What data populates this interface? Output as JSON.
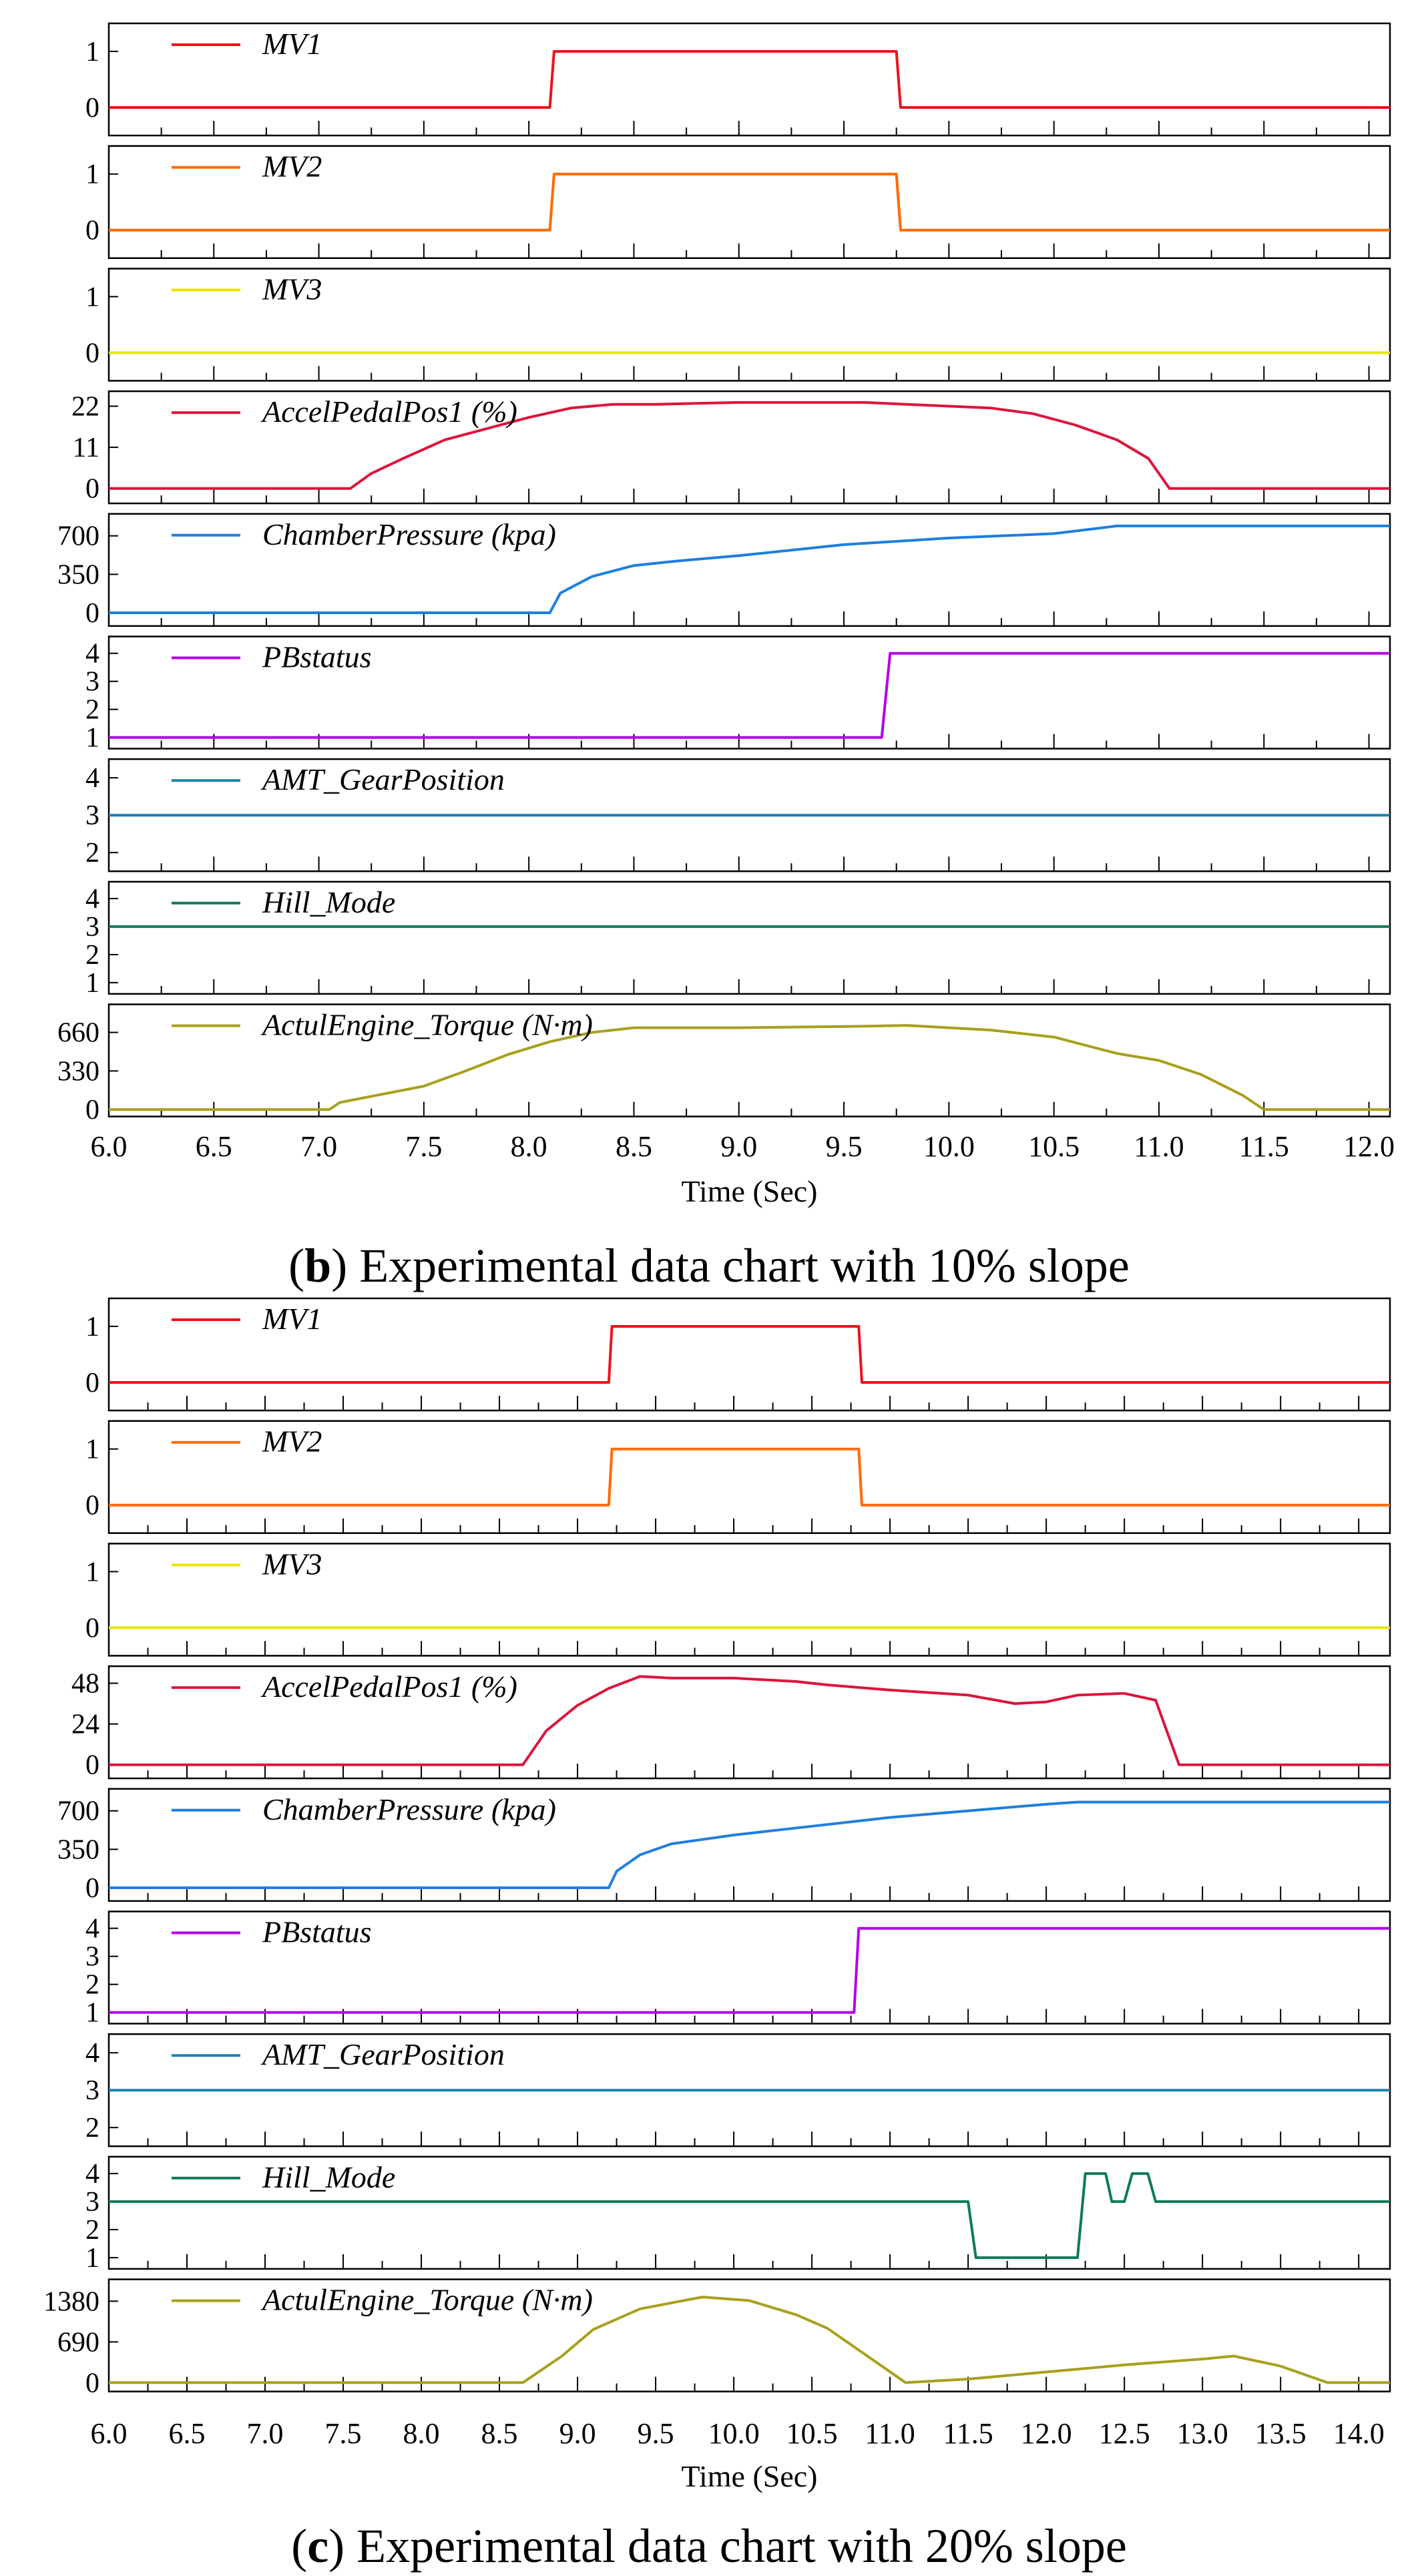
{
  "figure": {
    "colors": {
      "MV1": "#e8141b",
      "MV2": "#ff6a00",
      "MV3": "#e6e600",
      "AccelPedalPos1": "#dc143c",
      "ChamberPressure": "#1e7fe0",
      "PBstatus": "#b400e6",
      "AMT_GearPosition": "#1a82b4",
      "Hill_Mode": "#0f7a5a",
      "ActulEngine_Torque": "#a8a01e"
    }
  },
  "chart_data": [
    {
      "type": "line",
      "id": "b",
      "caption": {
        "letter": "b",
        "text": "Experimental data chart with 10% slope"
      },
      "xlabel": "Time (Sec)",
      "xlim": [
        6.0,
        12.1
      ],
      "xticks": [
        "6.0",
        "6.5",
        "7.0",
        "7.5",
        "8.0",
        "8.5",
        "9.0",
        "9.5",
        "10.0",
        "10.5",
        "11.0",
        "11.5",
        "12.0"
      ],
      "series": [
        {
          "name": "MV1",
          "color_key": "MV1",
          "ylim": [
            -0.5,
            1.5
          ],
          "yticks": [
            "0",
            "1"
          ],
          "x": [
            6.0,
            8.1,
            8.12,
            9.75,
            9.77,
            12.1
          ],
          "y": [
            0,
            0,
            1,
            1,
            0,
            0
          ]
        },
        {
          "name": "MV2",
          "color_key": "MV2",
          "ylim": [
            -0.5,
            1.5
          ],
          "yticks": [
            "0",
            "1"
          ],
          "x": [
            6.0,
            8.1,
            8.12,
            9.75,
            9.77,
            12.1
          ],
          "y": [
            0,
            0,
            1,
            1,
            0,
            0
          ]
        },
        {
          "name": "MV3",
          "color_key": "MV3",
          "ylim": [
            -0.5,
            1.5
          ],
          "yticks": [
            "0",
            "1"
          ],
          "x": [
            6.0,
            12.1
          ],
          "y": [
            0,
            0
          ]
        },
        {
          "name": "AccelPedalPos1 (%)",
          "color_key": "AccelPedalPos1",
          "ylim": [
            -4,
            26
          ],
          "yticks": [
            "0",
            "11",
            "22"
          ],
          "x": [
            6.0,
            7.15,
            7.25,
            7.4,
            7.6,
            7.8,
            8.0,
            8.2,
            8.4,
            8.6,
            9.0,
            9.4,
            9.6,
            9.8,
            10.0,
            10.2,
            10.4,
            10.6,
            10.8,
            10.95,
            11.05,
            12.1
          ],
          "y": [
            0,
            0,
            4,
            8,
            13,
            16,
            19,
            21.5,
            22.5,
            22.5,
            23,
            23,
            23,
            22.5,
            22,
            21.5,
            20,
            17,
            13,
            8,
            0,
            0
          ]
        },
        {
          "name": "ChamberPressure (kpa)",
          "color_key": "ChamberPressure",
          "ylim": [
            -120,
            900
          ],
          "yticks": [
            "0",
            "350",
            "700"
          ],
          "x": [
            6.0,
            8.1,
            8.15,
            8.3,
            8.5,
            8.7,
            9.0,
            9.5,
            10.0,
            10.5,
            10.8,
            11.5,
            12.1
          ],
          "y": [
            0,
            0,
            180,
            330,
            430,
            470,
            520,
            620,
            680,
            720,
            790,
            790,
            790
          ]
        },
        {
          "name": "PBstatus",
          "color_key": "PBstatus",
          "ylim": [
            0.6,
            4.6
          ],
          "yticks": [
            "1",
            "2",
            "3",
            "4"
          ],
          "x": [
            6.0,
            9.68,
            9.72,
            12.1
          ],
          "y": [
            1,
            1,
            4,
            4
          ]
        },
        {
          "name": "AMT_GearPosition",
          "color_key": "AMT_GearPosition",
          "ylim": [
            1.5,
            4.5
          ],
          "yticks": [
            "2",
            "3",
            "4"
          ],
          "x": [
            6.0,
            12.1
          ],
          "y": [
            3,
            3
          ]
        },
        {
          "name": "Hill_Mode",
          "color_key": "Hill_Mode",
          "ylim": [
            0.6,
            4.6
          ],
          "yticks": [
            "1",
            "2",
            "3",
            "4"
          ],
          "x": [
            6.0,
            12.1
          ],
          "y": [
            3,
            3
          ]
        },
        {
          "name": "ActulEngine_Torque (N·m)",
          "color_key": "ActulEngine_Torque",
          "ylim": [
            -60,
            900
          ],
          "yticks": [
            "0",
            "330",
            "660"
          ],
          "x": [
            6.0,
            7.05,
            7.1,
            7.3,
            7.5,
            7.7,
            7.9,
            8.1,
            8.3,
            8.5,
            9.0,
            9.5,
            9.8,
            10.2,
            10.5,
            10.8,
            11.0,
            11.2,
            11.4,
            11.5,
            12.1
          ],
          "y": [
            0,
            0,
            60,
            130,
            200,
            330,
            470,
            580,
            660,
            700,
            700,
            710,
            720,
            680,
            620,
            480,
            420,
            300,
            120,
            0,
            0
          ]
        }
      ]
    },
    {
      "type": "line",
      "id": "c",
      "caption": {
        "letter": "c",
        "text": "Experimental data chart with 20% slope"
      },
      "xlabel": "Time (Sec)",
      "xlim": [
        6.0,
        14.2
      ],
      "xticks": [
        "6.0",
        "6.5",
        "7.0",
        "7.5",
        "8.0",
        "8.5",
        "9.0",
        "9.5",
        "10.0",
        "10.5",
        "11.0",
        "11.5",
        "12.0",
        "12.5",
        "13.0",
        "13.5",
        "14.0"
      ],
      "series": [
        {
          "name": "MV1",
          "color_key": "MV1",
          "ylim": [
            -0.5,
            1.5
          ],
          "yticks": [
            "0",
            "1"
          ],
          "x": [
            6.0,
            9.2,
            9.22,
            10.8,
            10.82,
            14.2
          ],
          "y": [
            0,
            0,
            1,
            1,
            0,
            0
          ]
        },
        {
          "name": "MV2",
          "color_key": "MV2",
          "ylim": [
            -0.5,
            1.5
          ],
          "yticks": [
            "0",
            "1"
          ],
          "x": [
            6.0,
            9.2,
            9.22,
            10.8,
            10.82,
            14.2
          ],
          "y": [
            0,
            0,
            1,
            1,
            0,
            0
          ]
        },
        {
          "name": "MV3",
          "color_key": "MV3",
          "ylim": [
            -0.5,
            1.5
          ],
          "yticks": [
            "0",
            "1"
          ],
          "x": [
            6.0,
            14.2
          ],
          "y": [
            0,
            0
          ]
        },
        {
          "name": "AccelPedalPos1 (%)",
          "color_key": "AccelPedalPos1",
          "ylim": [
            -8,
            58
          ],
          "yticks": [
            "0",
            "24",
            "48"
          ],
          "x": [
            6.0,
            8.65,
            8.8,
            9.0,
            9.2,
            9.4,
            9.6,
            10.0,
            10.4,
            10.6,
            11.0,
            11.5,
            11.8,
            12.0,
            12.2,
            12.5,
            12.7,
            12.85,
            14.2
          ],
          "y": [
            0,
            0,
            20,
            35,
            45,
            52,
            51,
            51,
            49,
            47,
            44,
            41,
            36,
            37,
            41,
            42,
            38,
            0,
            0
          ]
        },
        {
          "name": "ChamberPressure (kpa)",
          "color_key": "ChamberPressure",
          "ylim": [
            -120,
            900
          ],
          "yticks": [
            "0",
            "350",
            "700"
          ],
          "x": [
            6.0,
            9.2,
            9.25,
            9.4,
            9.6,
            10.0,
            10.5,
            11.0,
            11.5,
            12.0,
            12.2,
            13.0,
            14.2
          ],
          "y": [
            0,
            0,
            150,
            300,
            400,
            480,
            560,
            640,
            700,
            760,
            780,
            780,
            780
          ]
        },
        {
          "name": "PBstatus",
          "color_key": "PBstatus",
          "ylim": [
            0.6,
            4.6
          ],
          "yticks": [
            "1",
            "2",
            "3",
            "4"
          ],
          "x": [
            6.0,
            10.77,
            10.8,
            14.2
          ],
          "y": [
            1,
            1,
            4,
            4
          ]
        },
        {
          "name": "AMT_GearPosition",
          "color_key": "AMT_GearPosition",
          "ylim": [
            1.5,
            4.5
          ],
          "yticks": [
            "2",
            "3",
            "4"
          ],
          "x": [
            6.0,
            14.2
          ],
          "y": [
            3,
            3
          ]
        },
        {
          "name": "Hill_Mode",
          "color_key": "Hill_Mode",
          "ylim": [
            0.6,
            4.6
          ],
          "yticks": [
            "1",
            "2",
            "3",
            "4"
          ],
          "x": [
            6.0,
            11.5,
            11.55,
            12.2,
            12.25,
            12.38,
            12.42,
            12.5,
            12.55,
            12.65,
            12.7,
            14.2
          ],
          "y": [
            3,
            3,
            1,
            1,
            4,
            4,
            3,
            3,
            4,
            4,
            3,
            3
          ]
        },
        {
          "name": "ActulEngine_Torque (N·m)",
          "color_key": "ActulEngine_Torque",
          "ylim": [
            -150,
            1750
          ],
          "yticks": [
            "0",
            "690",
            "1380"
          ],
          "x": [
            6.0,
            8.65,
            8.9,
            9.1,
            9.4,
            9.8,
            10.1,
            10.4,
            10.6,
            11.1,
            11.5,
            12.0,
            12.5,
            13.0,
            13.2,
            13.5,
            13.8,
            14.2
          ],
          "y": [
            0,
            0,
            450,
            900,
            1250,
            1450,
            1390,
            1150,
            920,
            0,
            60,
            180,
            300,
            400,
            450,
            280,
            0,
            0
          ]
        }
      ]
    }
  ]
}
